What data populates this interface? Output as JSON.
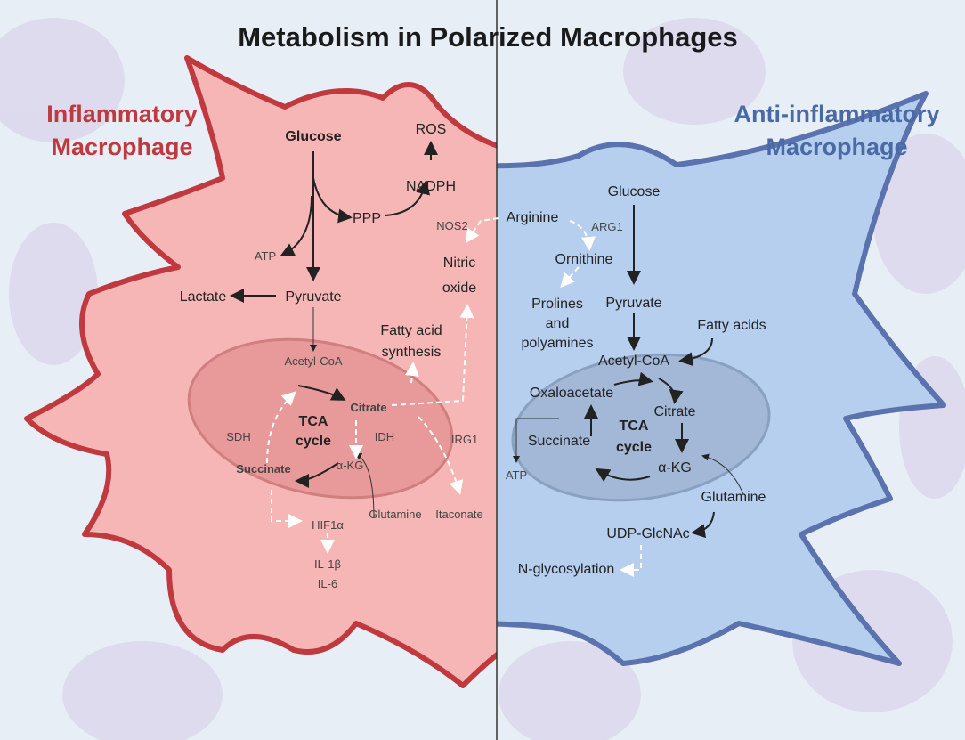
{
  "title": "Metabolism in Polarized Macrophages",
  "inflammatory": {
    "heading": [
      "Inflammatory",
      "Macrophage"
    ],
    "labels": {
      "glucose": "Glucose",
      "ppp": "PPP",
      "nadph": "NADPH",
      "ros": "ROS",
      "atp": "ATP",
      "lactate": "Lactate",
      "pyruvate": "Pyruvate",
      "acetyl_coa": "Acetyl-CoA",
      "citrate": "Citrate",
      "tca_cycle": [
        "TCA",
        "cycle"
      ],
      "sdh": "SDH",
      "idh": "IDH",
      "akg": "α-KG",
      "succinate": "Succinate",
      "glutamine": "Glutamine",
      "hif1a": "HIF1α",
      "il1b": "IL-1β",
      "il6": "IL-6",
      "itaconate": "Itaconate",
      "irg1": "IRG1",
      "fatty_acid_synthesis": [
        "Fatty acid",
        "synthesis"
      ],
      "nos2": "NOS2",
      "nitric_oxide": [
        "Nitric",
        "oxide"
      ]
    }
  },
  "shared": {
    "arginine": "Arginine"
  },
  "anti_inflammatory": {
    "heading": [
      "Anti-inflammatory",
      "Macrophage"
    ],
    "labels": {
      "glucose": "Glucose",
      "arg1": "ARG1",
      "ornithine": "Ornithine",
      "prolines": [
        "Prolines",
        "and",
        "polyamines"
      ],
      "pyruvate": "Pyruvate",
      "fatty_acids": "Fatty acids",
      "acetyl_coa": "Acetyl-CoA",
      "oxaloacetate": "Oxaloacetate",
      "citrate": "Citrate",
      "tca_cycle": [
        "TCA",
        "cycle"
      ],
      "succinate": "Succinate",
      "akg": "α-KG",
      "atp": "ATP",
      "glutamine": "Glutamine",
      "udp_glcnac": "UDP-GlcNAc",
      "n_glycosylation": "N-glycosylation"
    }
  }
}
